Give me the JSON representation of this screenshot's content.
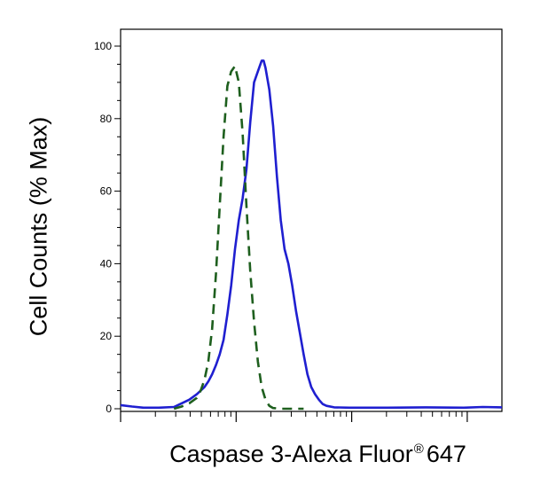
{
  "chart_data": {
    "type": "line",
    "title": "",
    "ylabel": "Cell Counts (% Max)",
    "xlabel": {
      "main": "Caspase 3-Alexa Fluor",
      "sup": "®",
      "tail": "647"
    },
    "x_scale": "log (unlabeled)",
    "xlim": [
      0,
      1
    ],
    "ylim": [
      0,
      100
    ],
    "yticks": [
      "0",
      "20",
      "40",
      "60",
      "80",
      "100"
    ],
    "yticks_values": [
      0,
      20,
      40,
      60,
      80,
      100
    ],
    "grid": false,
    "legend": "none",
    "series": [
      {
        "style": "solid",
        "color": "#1f1fd0",
        "points": [
          [
            0.0,
            1
          ],
          [
            0.03,
            0.6
          ],
          [
            0.06,
            0.3
          ],
          [
            0.1,
            0.3
          ],
          [
            0.14,
            0.5
          ],
          [
            0.16,
            1.5
          ],
          [
            0.18,
            2.5
          ],
          [
            0.2,
            4
          ],
          [
            0.21,
            5
          ],
          [
            0.22,
            6
          ],
          [
            0.23,
            7.5
          ],
          [
            0.24,
            9.5
          ],
          [
            0.25,
            12
          ],
          [
            0.26,
            15
          ],
          [
            0.27,
            19
          ],
          [
            0.28,
            26
          ],
          [
            0.29,
            34
          ],
          [
            0.3,
            44
          ],
          [
            0.31,
            52
          ],
          [
            0.32,
            58
          ],
          [
            0.33,
            66
          ],
          [
            0.34,
            79
          ],
          [
            0.35,
            90
          ],
          [
            0.36,
            93
          ],
          [
            0.37,
            96
          ],
          [
            0.375,
            96
          ],
          [
            0.38,
            94
          ],
          [
            0.39,
            88
          ],
          [
            0.4,
            78
          ],
          [
            0.41,
            64
          ],
          [
            0.42,
            52
          ],
          [
            0.43,
            44
          ],
          [
            0.44,
            40
          ],
          [
            0.45,
            34
          ],
          [
            0.46,
            27
          ],
          [
            0.47,
            21
          ],
          [
            0.48,
            15
          ],
          [
            0.49,
            9.5
          ],
          [
            0.5,
            6
          ],
          [
            0.51,
            4
          ],
          [
            0.52,
            2.5
          ],
          [
            0.53,
            1.3
          ],
          [
            0.54,
            0.8
          ],
          [
            0.56,
            0.4
          ],
          [
            0.6,
            0.3
          ],
          [
            0.7,
            0.3
          ],
          [
            0.8,
            0.4
          ],
          [
            0.9,
            0.3
          ],
          [
            0.95,
            0.5
          ],
          [
            1.0,
            0.4
          ]
        ]
      },
      {
        "style": "dashed",
        "color": "#1e5f1e",
        "points": [
          [
            0.14,
            0
          ],
          [
            0.16,
            0.6
          ],
          [
            0.18,
            1.5
          ],
          [
            0.2,
            3
          ],
          [
            0.21,
            5
          ],
          [
            0.22,
            8
          ],
          [
            0.23,
            13
          ],
          [
            0.24,
            22
          ],
          [
            0.25,
            37
          ],
          [
            0.26,
            56
          ],
          [
            0.27,
            75
          ],
          [
            0.28,
            89
          ],
          [
            0.29,
            93
          ],
          [
            0.3,
            94.5
          ],
          [
            0.31,
            90
          ],
          [
            0.32,
            76
          ],
          [
            0.33,
            56
          ],
          [
            0.34,
            38
          ],
          [
            0.35,
            24
          ],
          [
            0.36,
            13
          ],
          [
            0.37,
            6
          ],
          [
            0.38,
            2.5
          ],
          [
            0.39,
            0.8
          ],
          [
            0.4,
            0.2
          ],
          [
            0.42,
            0
          ],
          [
            0.48,
            0
          ]
        ]
      }
    ]
  }
}
